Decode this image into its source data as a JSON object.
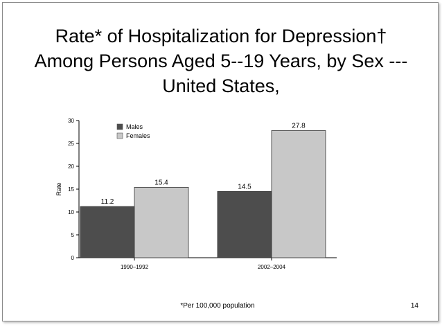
{
  "slide": {
    "title": "Rate* of Hospitalization for Depression† Among Persons Aged 5--19 Years, by Sex --- United States,",
    "footnote": "*Per 100,000 population",
    "page_number": "14"
  },
  "chart_data": {
    "type": "bar",
    "title": "",
    "xlabel": "",
    "ylabel": "Rate",
    "categories": [
      "1990–1992",
      "2002–2004"
    ],
    "series": [
      {
        "name": "Males",
        "values": [
          11.2,
          14.5
        ],
        "color": "#4d4d4d"
      },
      {
        "name": "Females",
        "values": [
          15.4,
          27.8
        ],
        "color": "#c8c8c8"
      }
    ],
    "data_labels": [
      [
        "11.2",
        "14.5"
      ],
      [
        "15.4",
        "27.8"
      ]
    ],
    "ylim": [
      0,
      30
    ],
    "yticks": [
      0,
      5,
      10,
      15,
      20,
      25,
      30
    ],
    "legend_position": "top-left",
    "grid": false
  }
}
